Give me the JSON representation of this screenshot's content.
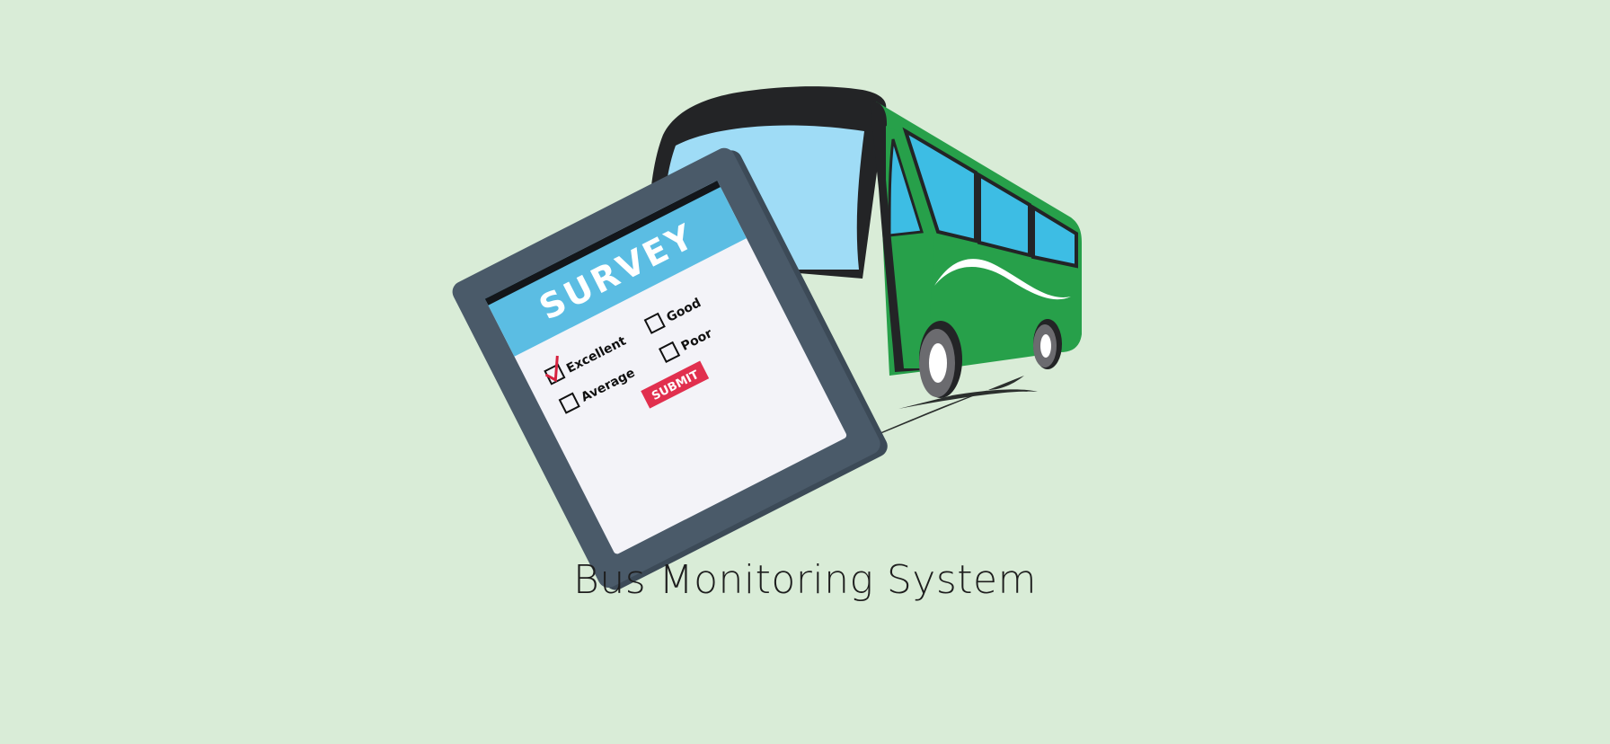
{
  "caption": "Bus Monitoring System",
  "survey": {
    "title": "SURVEY",
    "options": [
      {
        "label": "Excellent",
        "checked": true
      },
      {
        "label": "Good",
        "checked": false
      },
      {
        "label": "Average",
        "checked": false
      },
      {
        "label": "Poor",
        "checked": false
      }
    ],
    "submit_label": "SUBMIT"
  },
  "colors": {
    "background": "#d9ecd7",
    "bus_body": "#27a04a",
    "bus_dark": "#232426",
    "bus_window": "#3dbde4",
    "windshield": "#9fdcf6",
    "tablet_frame": "#4a5a69",
    "survey_header": "#5bbde3",
    "survey_body": "#f3f3f8",
    "submit": "#e12f4e",
    "check": "#d6213f"
  }
}
